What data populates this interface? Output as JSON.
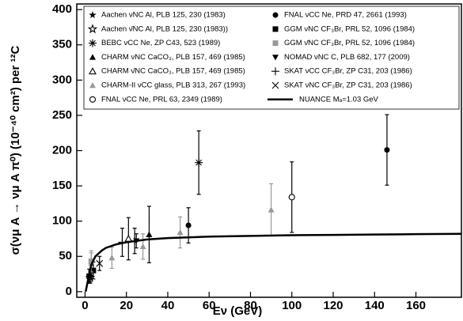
{
  "chart_data": {
    "type": "scatter",
    "xlabel": "Eν (GeV)",
    "ylabel": "σ(νμ A → νμ A π⁰) (10⁻⁴⁰ cm²) per ¹²C",
    "xlim": [
      -4,
      182
    ],
    "ylim": [
      -8,
      408
    ],
    "xticks": [
      0,
      20,
      40,
      60,
      80,
      100,
      120,
      140,
      160
    ],
    "yticks": [
      0,
      50,
      100,
      150,
      200,
      250,
      300,
      350,
      400
    ],
    "series": [
      {
        "name": "Aachen νNC Al, PLB 125, 230 (1983)",
        "marker": "star",
        "color": "#000000",
        "x": [
          2.5
        ],
        "values": [
          22
        ],
        "errors": [
          8
        ]
      },
      {
        "name": "Aachen ν̄NC Al, PLB 125, 230 (1983))",
        "marker": "open-star",
        "color": "#000000",
        "x": [
          2.5
        ],
        "values": [
          20
        ],
        "errors": [
          8
        ]
      },
      {
        "name": "BEBC νCC Ne, ZP C43, 523 (1989)",
        "marker": "asterisk",
        "color": "#000000",
        "x": [
          55
        ],
        "values": [
          183
        ],
        "errors": [
          45
        ]
      },
      {
        "name": "CHARM νNC CaCO₃, PLB 157, 469 (1985)",
        "marker": "triangle",
        "color": "#000000",
        "x": [
          31
        ],
        "values": [
          81
        ],
        "errors": [
          40
        ]
      },
      {
        "name": "CHARM ν̄NC CaCO₃, PLB 157, 469 (1985)",
        "marker": "open-triangle",
        "color": "#000000",
        "x": [
          21
        ],
        "values": [
          75
        ],
        "errors": [
          30
        ]
      },
      {
        "name": "CHARM-II νCC glass, PLB 313, 267 (1993)",
        "marker": "triangle",
        "color": "#999999",
        "x": [
          3,
          13,
          28,
          46,
          90
        ],
        "values": [
          40,
          48,
          64,
          84,
          116
        ],
        "errors": [
          15,
          15,
          18,
          22,
          37
        ]
      },
      {
        "name": "FNAL νCC Ne, PRL 63, 2349 (1989)",
        "marker": "open-circle",
        "color": "#000000",
        "x": [
          100
        ],
        "values": [
          134
        ],
        "errors": [
          50
        ]
      },
      {
        "name": "FNAL νCC Ne, PRD 47, 2661 (1993)",
        "marker": "circle",
        "color": "#000000",
        "x": [
          50,
          146
        ],
        "values": [
          94,
          201
        ],
        "errors": [
          25,
          50
        ]
      },
      {
        "name": "GGM νNC CF₃Br, PRL 52, 1096 (1984)",
        "marker": "square",
        "color": "#000000",
        "x": [
          2,
          4
        ],
        "values": [
          22,
          30
        ],
        "errors": [
          10,
          12
        ]
      },
      {
        "name": "GGM ν̄NC CF₃Br, PRL 52, 1096 (1984)",
        "marker": "square",
        "color": "#999999",
        "x": [
          3
        ],
        "values": [
          43
        ],
        "errors": [
          15
        ]
      },
      {
        "name": "NOMAD νNC C, PLB 682, 177 (2009)",
        "marker": "down-triangle",
        "color": "#000000",
        "x": [
          24.8
        ],
        "values": [
          72
        ],
        "errors": [
          10
        ]
      },
      {
        "name": "SKAT νCC CF₃Br, ZP C31, 203 (1986)",
        "marker": "plus",
        "color": "#000000",
        "x": [
          18,
          24
        ],
        "values": [
          70,
          72
        ],
        "errors": [
          20,
          18
        ]
      },
      {
        "name": "SKAT νNC CF₃Br, ZP C31, 203 (1986)",
        "marker": "cross",
        "color": "#000000",
        "x": [
          7
        ],
        "values": [
          40
        ],
        "errors": [
          10
        ]
      },
      {
        "name": "NUANCE Mₐ=1.03 GeV",
        "marker": "line",
        "color": "#000000",
        "x": [
          0.3,
          1,
          2,
          3,
          5,
          8,
          10,
          15,
          20,
          30,
          40,
          60,
          80,
          100,
          120,
          140,
          160,
          182
        ],
        "values": [
          0,
          10,
          25,
          38,
          50,
          58,
          62,
          67,
          70,
          74,
          76,
          78,
          79,
          80,
          80.5,
          81,
          81.5,
          82
        ]
      }
    ]
  }
}
